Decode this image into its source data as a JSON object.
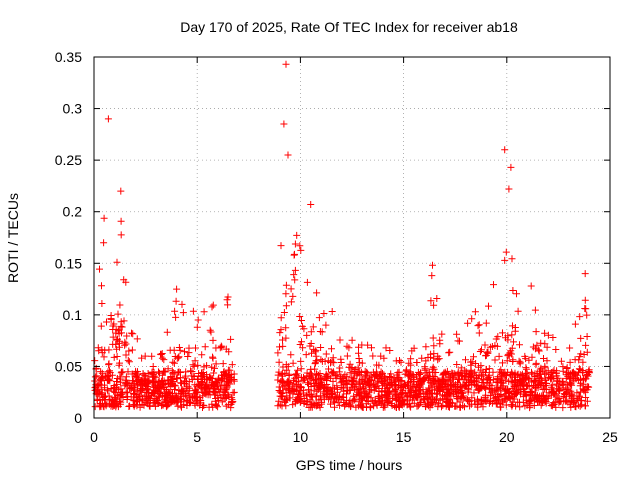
{
  "chart_data": {
    "type": "scatter",
    "title": "Day 170 of 2025, Rate Of TEC Index for receiver ab18",
    "xlabel": "GPS time / hours",
    "ylabel": "ROTI / TECUs",
    "xlim": [
      0,
      25
    ],
    "ylim": [
      0,
      0.35
    ],
    "xticks": [
      "0",
      "5",
      "10",
      "15",
      "20",
      "25"
    ],
    "yticks": [
      "0",
      "0.05",
      "0.1",
      "0.15",
      "0.2",
      "0.25",
      "0.3",
      "0.35"
    ],
    "grid": true,
    "marker": "+",
    "marker_color": "#ff0000",
    "data_gap_hours": [
      6.8,
      8.9
    ],
    "notable_points": [
      {
        "x": 0.7,
        "y": 0.29
      },
      {
        "x": 1.3,
        "y": 0.22
      },
      {
        "x": 4.0,
        "y": 0.125
      },
      {
        "x": 9.3,
        "y": 0.343
      },
      {
        "x": 9.2,
        "y": 0.285
      },
      {
        "x": 9.4,
        "y": 0.255
      },
      {
        "x": 10.5,
        "y": 0.207
      },
      {
        "x": 16.4,
        "y": 0.148
      },
      {
        "x": 19.9,
        "y": 0.26
      },
      {
        "x": 20.2,
        "y": 0.243
      },
      {
        "x": 20.1,
        "y": 0.222
      },
      {
        "x": 23.8,
        "y": 0.14
      }
    ],
    "activity_envelope": [
      {
        "x": 0.0,
        "peak": 0.1
      },
      {
        "x": 0.5,
        "peak": 0.2
      },
      {
        "x": 1.0,
        "peak": 0.17
      },
      {
        "x": 1.4,
        "peak": 0.2
      },
      {
        "x": 2.0,
        "peak": 0.08
      },
      {
        "x": 3.0,
        "peak": 0.07
      },
      {
        "x": 3.5,
        "peak": 0.09
      },
      {
        "x": 4.0,
        "peak": 0.12
      },
      {
        "x": 5.0,
        "peak": 0.1
      },
      {
        "x": 5.8,
        "peak": 0.11
      },
      {
        "x": 6.4,
        "peak": 0.135
      },
      {
        "x": 6.8,
        "peak": 0.08
      },
      {
        "x": 8.9,
        "peak": 0.13
      },
      {
        "x": 9.2,
        "peak": 0.25
      },
      {
        "x": 9.6,
        "peak": 0.23
      },
      {
        "x": 10.0,
        "peak": 0.17
      },
      {
        "x": 10.5,
        "peak": 0.17
      },
      {
        "x": 11.0,
        "peak": 0.12
      },
      {
        "x": 12.0,
        "peak": 0.09
      },
      {
        "x": 13.0,
        "peak": 0.08
      },
      {
        "x": 14.0,
        "peak": 0.07
      },
      {
        "x": 15.0,
        "peak": 0.06
      },
      {
        "x": 16.0,
        "peak": 0.08
      },
      {
        "x": 16.4,
        "peak": 0.145
      },
      {
        "x": 17.0,
        "peak": 0.07
      },
      {
        "x": 18.0,
        "peak": 0.09
      },
      {
        "x": 19.0,
        "peak": 0.12
      },
      {
        "x": 19.5,
        "peak": 0.14
      },
      {
        "x": 20.0,
        "peak": 0.19
      },
      {
        "x": 20.5,
        "peak": 0.15
      },
      {
        "x": 21.0,
        "peak": 0.14
      },
      {
        "x": 22.0,
        "peak": 0.09
      },
      {
        "x": 23.0,
        "peak": 0.08
      },
      {
        "x": 23.8,
        "peak": 0.135
      },
      {
        "x": 24.0,
        "peak": 0.08
      }
    ],
    "baseline_floor": 0.01
  }
}
